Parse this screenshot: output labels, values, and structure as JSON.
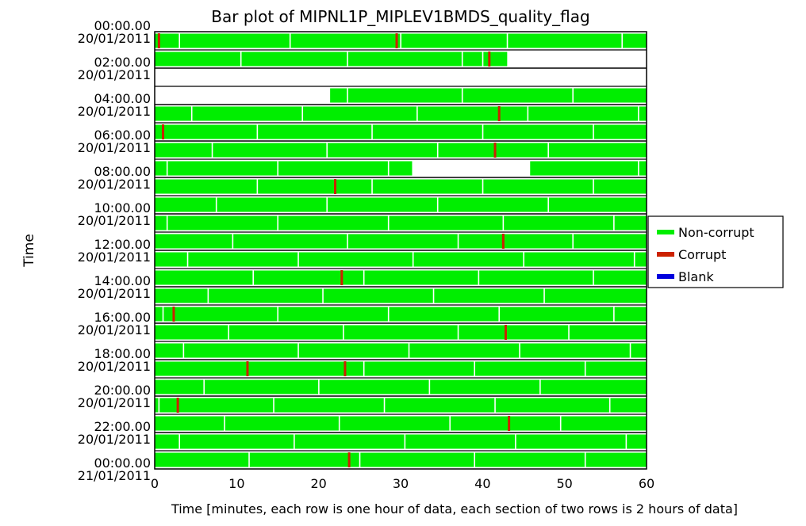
{
  "chart_data": {
    "type": "bar",
    "title": "Bar plot of MIPNL1P_MIPLEV1BMDS_quality_flag",
    "xlabel": "Time [minutes, each row is one hour of data, each section of two rows is 2 hours of data]",
    "ylabel": "Time",
    "xlim": [
      0,
      60
    ],
    "xticks": [
      "0",
      "10",
      "20",
      "30",
      "40",
      "50",
      "60"
    ],
    "yticks": [
      {
        "time": "00:00.00",
        "date": "20/01/2011"
      },
      {
        "time": "02:00.00",
        "date": "20/01/2011"
      },
      {
        "time": "04:00.00",
        "date": "20/01/2011"
      },
      {
        "time": "06:00.00",
        "date": "20/01/2011"
      },
      {
        "time": "08:00.00",
        "date": "20/01/2011"
      },
      {
        "time": "10:00.00",
        "date": "20/01/2011"
      },
      {
        "time": "12:00.00",
        "date": "20/01/2011"
      },
      {
        "time": "14:00.00",
        "date": "20/01/2011"
      },
      {
        "time": "16:00.00",
        "date": "20/01/2011"
      },
      {
        "time": "18:00.00",
        "date": "20/01/2011"
      },
      {
        "time": "20:00.00",
        "date": "20/01/2011"
      },
      {
        "time": "22:00.00",
        "date": "20/01/2011"
      },
      {
        "time": "00:00.00",
        "date": "21/01/2011"
      }
    ],
    "legend": {
      "position": "right",
      "entries": [
        {
          "label": "Non-corrupt",
          "color": "#00ee00"
        },
        {
          "label": "Corrupt",
          "color": "#cc2200"
        },
        {
          "label": "Blank",
          "color": "#0000dd"
        }
      ]
    },
    "rows": [
      {
        "hour": 0,
        "data": [
          [
            0,
            60
          ]
        ],
        "corrupt": [
          0.5,
          29.5
        ],
        "seps": [
          3,
          16.5,
          30,
          43,
          57
        ]
      },
      {
        "hour": 1,
        "data": [
          [
            0,
            43
          ]
        ],
        "corrupt": [
          40.8
        ],
        "seps": [
          10.5,
          23.5,
          37.5,
          40
        ]
      },
      {
        "hour": 2,
        "data": [],
        "corrupt": [],
        "seps": []
      },
      {
        "hour": 3,
        "data": [
          [
            21.4,
            60
          ]
        ],
        "corrupt": [],
        "seps": [
          23.5,
          37.5,
          51
        ]
      },
      {
        "hour": 4,
        "data": [
          [
            0,
            60
          ]
        ],
        "corrupt": [
          42
        ],
        "seps": [
          4.5,
          18,
          32,
          45.5,
          59
        ]
      },
      {
        "hour": 5,
        "data": [
          [
            0,
            60
          ]
        ],
        "corrupt": [
          1
        ],
        "seps": [
          12.5,
          26.5,
          40,
          53.5
        ]
      },
      {
        "hour": 6,
        "data": [
          [
            0,
            60
          ]
        ],
        "corrupt": [
          41.5
        ],
        "seps": [
          7,
          21,
          34.5,
          48
        ]
      },
      {
        "hour": 7,
        "data": [
          [
            0,
            31.4
          ],
          [
            45.8,
            60
          ]
        ],
        "corrupt": [],
        "seps": [
          1.5,
          15,
          28.5,
          59
        ]
      },
      {
        "hour": 8,
        "data": [
          [
            0,
            60
          ]
        ],
        "corrupt": [
          22
        ],
        "seps": [
          12.5,
          26.5,
          40,
          53.5
        ]
      },
      {
        "hour": 9,
        "data": [
          [
            0,
            60
          ]
        ],
        "corrupt": [],
        "seps": [
          7.5,
          21,
          34.5,
          48
        ]
      },
      {
        "hour": 10,
        "data": [
          [
            0,
            60
          ]
        ],
        "corrupt": [],
        "seps": [
          1.5,
          15,
          28.5,
          42.5,
          56
        ]
      },
      {
        "hour": 11,
        "data": [
          [
            0,
            60
          ]
        ],
        "corrupt": [
          42.5
        ],
        "seps": [
          9.5,
          23.5,
          37,
          51
        ]
      },
      {
        "hour": 12,
        "data": [
          [
            0,
            60
          ]
        ],
        "corrupt": [],
        "seps": [
          4,
          17.5,
          31.5,
          45,
          58.5
        ]
      },
      {
        "hour": 13,
        "data": [
          [
            0,
            60
          ]
        ],
        "corrupt": [
          22.8
        ],
        "seps": [
          12,
          25.5,
          39.5,
          53.5
        ]
      },
      {
        "hour": 14,
        "data": [
          [
            0,
            60
          ]
        ],
        "corrupt": [],
        "seps": [
          6.5,
          20.5,
          34,
          47.5
        ]
      },
      {
        "hour": 15,
        "data": [
          [
            0,
            60
          ]
        ],
        "corrupt": [
          2.3
        ],
        "seps": [
          1,
          15,
          28.5,
          42,
          56
        ]
      },
      {
        "hour": 16,
        "data": [
          [
            0,
            60
          ]
        ],
        "corrupt": [
          42.8
        ],
        "seps": [
          9,
          23,
          37,
          50.5
        ]
      },
      {
        "hour": 17,
        "data": [
          [
            0,
            60
          ]
        ],
        "corrupt": [],
        "seps": [
          3.5,
          17.5,
          31,
          44.5,
          58
        ]
      },
      {
        "hour": 18,
        "data": [
          [
            0,
            60
          ]
        ],
        "corrupt": [
          11.3,
          23.2
        ],
        "seps": [
          25.5,
          39,
          52.5
        ]
      },
      {
        "hour": 19,
        "data": [
          [
            0,
            60
          ]
        ],
        "corrupt": [],
        "seps": [
          6,
          20,
          33.5,
          47
        ]
      },
      {
        "hour": 20,
        "data": [
          [
            0,
            60
          ]
        ],
        "corrupt": [
          2.8
        ],
        "seps": [
          0.5,
          14.5,
          28,
          41.5,
          55.5
        ]
      },
      {
        "hour": 21,
        "data": [
          [
            0,
            60
          ]
        ],
        "corrupt": [
          43.2
        ],
        "seps": [
          8.5,
          22.5,
          36,
          49.5
        ]
      },
      {
        "hour": 22,
        "data": [
          [
            0,
            60
          ]
        ],
        "corrupt": [],
        "seps": [
          3,
          17,
          30.5,
          44,
          57.5
        ]
      },
      {
        "hour": 23,
        "data": [
          [
            0,
            60
          ]
        ],
        "corrupt": [
          23.7
        ],
        "seps": [
          11.5,
          25,
          39,
          52.5
        ]
      }
    ]
  }
}
